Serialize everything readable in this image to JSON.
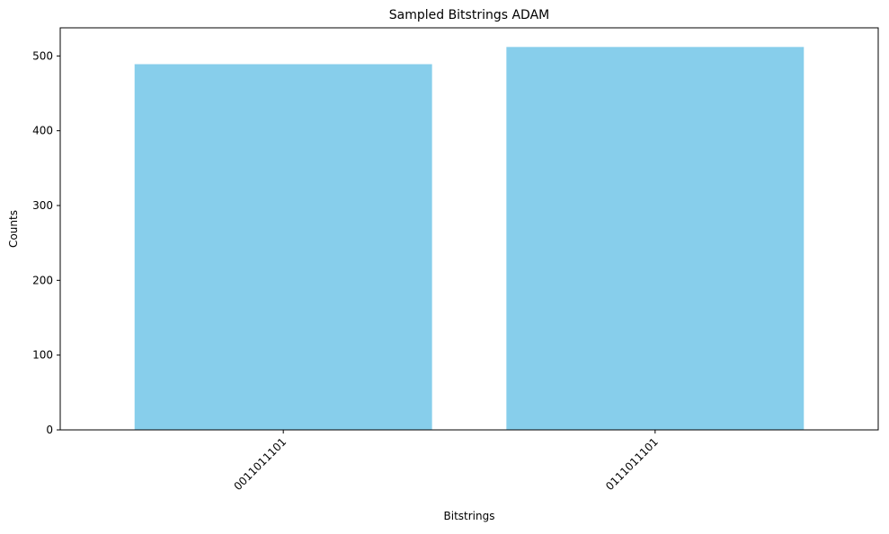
{
  "chart_data": {
    "type": "bar",
    "title": "Sampled Bitstrings ADAM",
    "xlabel": "Bitstrings",
    "ylabel": "Counts",
    "categories": [
      "0011011101",
      "0111011101"
    ],
    "values": [
      489,
      512
    ],
    "ylim": [
      0,
      537.6
    ],
    "yticks": [
      0,
      100,
      200,
      300,
      400,
      500
    ],
    "bar_color": "#87CEEB",
    "xtick_rotation": 45,
    "grid": false
  }
}
